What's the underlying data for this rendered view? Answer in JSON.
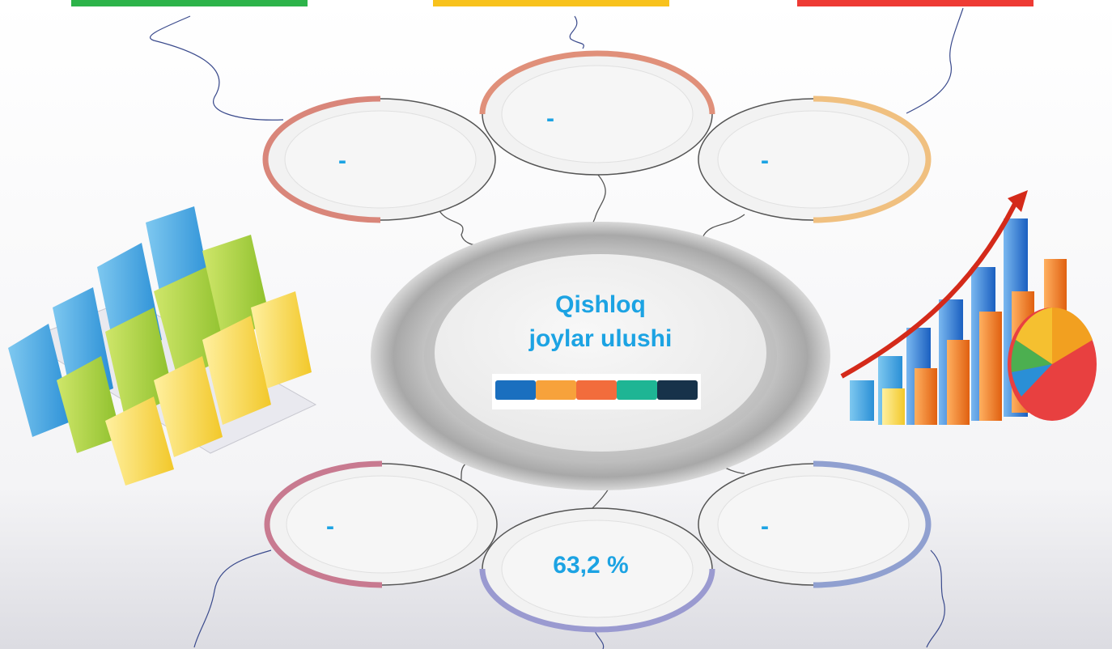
{
  "center": {
    "title_lines": [
      "Qishloq",
      "joylar ulushi"
    ]
  },
  "nodes": [
    {
      "label": "-"
    },
    {
      "label": "-"
    },
    {
      "label": "-"
    },
    {
      "label": "-"
    },
    {
      "label": "63,2 %"
    },
    {
      "label": "-"
    }
  ]
}
